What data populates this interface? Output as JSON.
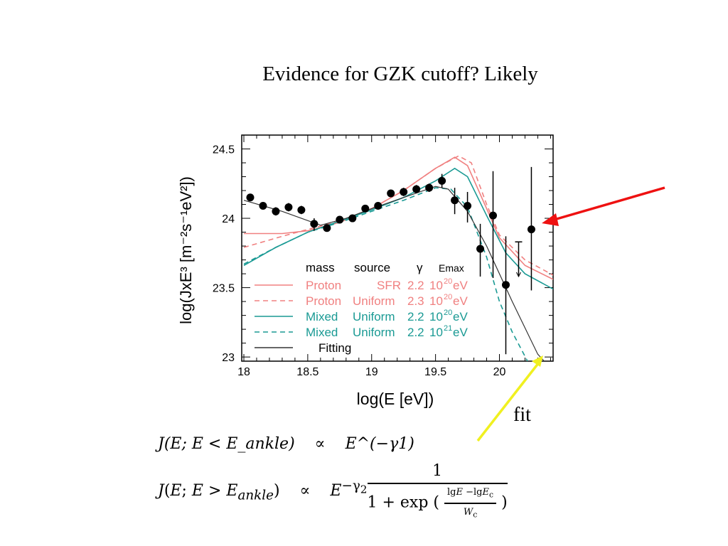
{
  "slide": {
    "title": "Evidence for GZK cutoff? Likely",
    "fit_label": "fit",
    "arrow_colors": {
      "red": "#ee1111",
      "yellow": "#f0f020"
    },
    "equations": [
      {
        "lhs": "J(E; E < E_ankle)",
        "rel": "∝",
        "rhs": "E^(−γ1)"
      },
      {
        "lhs": "J(E; E > E_ankle)",
        "rel": "∝",
        "rhs": "E^(−γ2) · 1 / (1 + exp((lgE − lgE_c)/W_c))"
      }
    ]
  },
  "chart_data": {
    "type": "scatter",
    "xlabel": "log(E [eV])",
    "ylabel": "log(JxE³ [m⁻²s⁻¹eV²])",
    "xlim": [
      18,
      20.42
    ],
    "ylim": [
      22.97,
      24.6
    ],
    "xticks": [
      "18",
      "18.5",
      "19",
      "19.5",
      "20"
    ],
    "yticks": [
      "23",
      "23.5",
      "24",
      "24.5"
    ],
    "grid": false,
    "legend": {
      "placement": "bottom-center",
      "header": [
        "mass",
        "source",
        "γ",
        "Emax"
      ],
      "entries": [
        {
          "mass": "Proton",
          "source": "SFR",
          "gamma": "2.2",
          "emax_base": "10",
          "emax_exp": "20",
          "unit": "eV",
          "color": "#f08080",
          "dash": false
        },
        {
          "mass": "Proton",
          "source": "Uniform",
          "gamma": "2.3",
          "emax_base": "10",
          "emax_exp": "20",
          "unit": "eV",
          "color": "#f08080",
          "dash": true
        },
        {
          "mass": "Mixed",
          "source": "Uniform",
          "gamma": "2.2",
          "emax_base": "10",
          "emax_exp": "20",
          "unit": "eV",
          "color": "#1a9a94",
          "dash": false
        },
        {
          "mass": "Mixed",
          "source": "Uniform",
          "gamma": "2.2",
          "emax_base": "10",
          "emax_exp": "21",
          "unit": "eV",
          "color": "#1a9a94",
          "dash": true
        },
        {
          "mass": "Fitting",
          "source": "",
          "gamma": "",
          "emax_base": "",
          "emax_exp": "",
          "unit": "",
          "color": "#333333",
          "dash": false
        }
      ]
    },
    "data_points": {
      "x": [
        18.05,
        18.15,
        18.25,
        18.35,
        18.45,
        18.55,
        18.65,
        18.75,
        18.85,
        18.95,
        19.05,
        19.15,
        19.25,
        19.35,
        19.45,
        19.55,
        19.65,
        19.75,
        19.85,
        19.95,
        20.05,
        20.15,
        20.25
      ],
      "y": [
        24.15,
        24.09,
        24.05,
        24.08,
        24.06,
        23.96,
        23.93,
        23.99,
        24.0,
        24.07,
        24.09,
        24.18,
        24.19,
        24.21,
        24.22,
        24.27,
        24.13,
        24.09,
        23.78,
        24.02,
        23.52,
        23.83,
        23.92
      ],
      "err_up": [
        0.02,
        0.02,
        0.03,
        0.03,
        0.03,
        0.04,
        0.02,
        0.02,
        0.02,
        0.02,
        0.02,
        0.02,
        0.03,
        0.03,
        0.03,
        0.05,
        0.09,
        0.1,
        0.18,
        0.32,
        0.35,
        0,
        0.45
      ],
      "err_down": [
        0.02,
        0.02,
        0.03,
        0.03,
        0.03,
        0.05,
        0.02,
        0.02,
        0.02,
        0.02,
        0.02,
        0.02,
        0.03,
        0.03,
        0.03,
        0.05,
        0.1,
        0.12,
        0.2,
        0.45,
        0.5,
        0.25,
        0.44
      ],
      "upper_limit": [
        false,
        false,
        false,
        false,
        false,
        false,
        false,
        false,
        false,
        false,
        false,
        false,
        false,
        false,
        false,
        false,
        false,
        false,
        false,
        false,
        false,
        true,
        false
      ]
    },
    "series": [
      {
        "legend_index": 0,
        "x": [
          18.0,
          18.3,
          18.5,
          18.75,
          19.0,
          19.25,
          19.5,
          19.65,
          19.75,
          19.9,
          20.0,
          20.2,
          20.42
        ],
        "y": [
          23.89,
          23.89,
          23.91,
          23.97,
          24.07,
          24.2,
          24.36,
          24.44,
          24.38,
          24.07,
          23.86,
          23.66,
          23.56
        ]
      },
      {
        "legend_index": 1,
        "x": [
          18.0,
          18.3,
          18.5,
          18.75,
          19.0,
          19.25,
          19.5,
          19.68,
          19.78,
          19.9,
          20.0,
          20.2,
          20.42
        ],
        "y": [
          23.79,
          23.87,
          23.92,
          23.98,
          24.07,
          24.2,
          24.36,
          24.45,
          24.4,
          24.1,
          23.88,
          23.7,
          23.59
        ]
      },
      {
        "legend_index": 2,
        "x": [
          18.0,
          18.25,
          18.5,
          18.75,
          19.0,
          19.25,
          19.5,
          19.65,
          19.75,
          19.9,
          20.05,
          20.2,
          20.42
        ],
        "y": [
          23.66,
          23.79,
          23.9,
          23.98,
          24.06,
          24.15,
          24.27,
          24.36,
          24.3,
          24.02,
          23.75,
          23.6,
          23.49
        ]
      },
      {
        "legend_index": 3,
        "x": [
          18.0,
          18.25,
          18.5,
          18.75,
          19.0,
          19.25,
          19.5,
          19.62,
          19.75,
          19.9,
          20.0,
          20.1,
          20.22
        ],
        "y": [
          23.67,
          23.79,
          23.9,
          23.97,
          24.05,
          24.13,
          24.22,
          24.21,
          24.08,
          23.72,
          23.4,
          23.18,
          22.97
        ]
      },
      {
        "legend_index": 4,
        "x": [
          18.0,
          18.3,
          18.6,
          18.8,
          19.0,
          19.25,
          19.5,
          19.6,
          19.75,
          19.9,
          20.1,
          20.3,
          20.35
        ],
        "y": [
          24.13,
          24.05,
          23.95,
          24.0,
          24.07,
          24.15,
          24.23,
          24.21,
          24.05,
          23.8,
          23.4,
          23.02,
          22.97
        ]
      }
    ]
  }
}
